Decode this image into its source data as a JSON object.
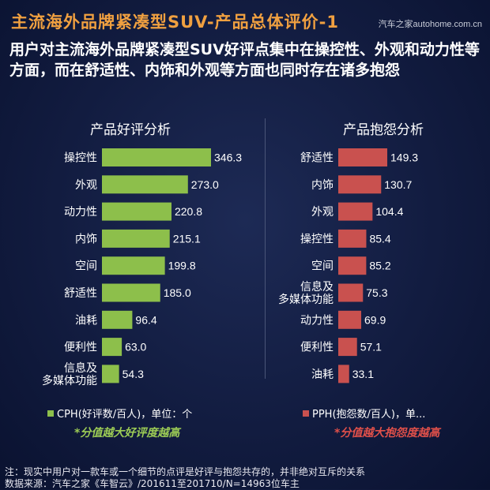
{
  "header": {
    "title": "主流海外品牌紧凑型SUV-产品总体评价-1",
    "brand": "汽车之家autohome.com.cn",
    "subtitle": "用户对主流海外品牌紧凑型SUV好评点集中在操控性、外观和动力性等方面，而在舒适性、内饰和外观等方面也同时存在诸多抱怨"
  },
  "chart_data": [
    {
      "type": "bar",
      "orientation": "horizontal",
      "title": "产品好评分析",
      "categories": [
        "操控性",
        "外观",
        "动力性",
        "内饰",
        "空间",
        "舒适性",
        "油耗",
        "便利性",
        "信息及\n多媒体功能"
      ],
      "values": [
        346.3,
        273.0,
        220.8,
        215.1,
        199.8,
        185.0,
        96.4,
        63.0,
        54.3
      ],
      "labels": [
        "346.3",
        "273.0",
        "220.8",
        "215.1",
        "199.8",
        "185.0",
        "96.4",
        "63.0",
        "54.3"
      ],
      "legend": "CPH(好评数/百人)，单位：个",
      "note": "*分值越大好评度越高",
      "color": "#8dbf4b",
      "note_color": "#9ccc55"
    },
    {
      "type": "bar",
      "orientation": "horizontal",
      "title": "产品抱怨分析",
      "categories": [
        "舒适性",
        "内饰",
        "外观",
        "操控性",
        "空间",
        "信息及\n多媒体功能",
        "动力性",
        "便利性",
        "油耗"
      ],
      "values": [
        149.3,
        130.7,
        104.4,
        85.4,
        85.2,
        75.3,
        69.9,
        57.1,
        33.1
      ],
      "labels": [
        "149.3",
        "130.7",
        "104.4",
        "85.4",
        "85.2",
        "75.3",
        "69.9",
        "57.1",
        "33.1"
      ],
      "legend": "PPH(抱怨数/百人)，单...",
      "note": "*分值越大抱怨度越高",
      "color": "#c9514f",
      "note_color": "#e0504a"
    }
  ],
  "footer": {
    "note": "注：现实中用户对一款车或一个细节的点评是好评与抱怨共存的，并非绝对互斥的关系",
    "source": "数据来源：汽车之家《车智云》/201611至201710/N=14963位车主"
  }
}
